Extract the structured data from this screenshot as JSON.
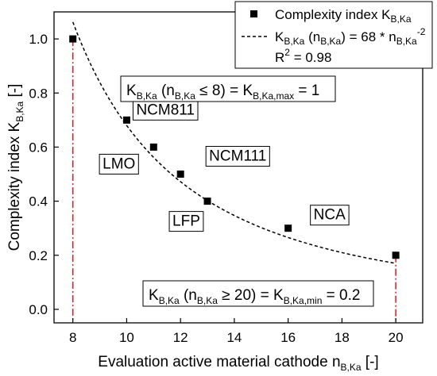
{
  "chart_data": {
    "type": "scatter",
    "xlim": [
      7.3,
      21.0
    ],
    "ylim": [
      -0.05,
      1.1
    ],
    "x_ticks": [
      8,
      10,
      12,
      14,
      16,
      18,
      20
    ],
    "y_ticks": [
      0.0,
      0.2,
      0.4,
      0.6,
      0.8,
      1.0
    ],
    "x_tick_labels": [
      "8",
      "10",
      "12",
      "14",
      "16",
      "18",
      "20"
    ],
    "y_tick_labels": [
      "0.0",
      "0.2",
      "0.4",
      "0.6",
      "0.8",
      "1.0"
    ],
    "xlabel": {
      "main": "Evaluation active material cathode n",
      "sub": "B,Ka",
      "unit": " [-]"
    },
    "ylabel": {
      "main": "Complexity index K",
      "sub": "B,Ka",
      "unit": " [-]"
    },
    "series": [
      {
        "name": "Complexity index K",
        "name_sub": "B,Ka",
        "marker": "square",
        "color": "#000000",
        "points": [
          {
            "x": 8,
            "y": 1.0
          },
          {
            "x": 10,
            "y": 0.7
          },
          {
            "x": 11,
            "y": 0.6
          },
          {
            "x": 12,
            "y": 0.5
          },
          {
            "x": 13,
            "y": 0.4
          },
          {
            "x": 16,
            "y": 0.3
          },
          {
            "x": 20,
            "y": 0.2
          }
        ]
      }
    ],
    "fit": {
      "type": "power",
      "coefficient": 68,
      "exponent": -2,
      "x_range": [
        8,
        20
      ],
      "style": "dashed",
      "color": "#000000",
      "legend_k": "K",
      "legend_k_sub": "B,Ka",
      "legend_mid": " (n",
      "legend_mid_sub": "B,Ka",
      "legend_eq": ") = 68 * n",
      "legend_n_sub": "B,Ka",
      "legend_exp": "-2",
      "r2_label": "R",
      "r2_sup": "2",
      "r2_value": " = 0.98"
    },
    "reference_lines": [
      {
        "x": 8,
        "y_top": 1.0,
        "color": "#e31a1c",
        "style": "dash-dot"
      },
      {
        "x": 20,
        "y_top": 0.2,
        "color": "#e31a1c",
        "style": "dash-dot"
      }
    ],
    "point_labels": [
      {
        "text": "NCM811",
        "x": 10,
        "y": 0.7
      },
      {
        "text": "LMO",
        "x": 11,
        "y": 0.6
      },
      {
        "text": "NCM111",
        "x": 12,
        "y": 0.5
      },
      {
        "text": "LFP",
        "x": 13,
        "y": 0.4
      },
      {
        "text": "NCA",
        "x": 16,
        "y": 0.3
      }
    ],
    "annotations": [
      {
        "id": "max",
        "parts": [
          {
            "t": "K"
          },
          {
            "t": "B,Ka",
            "sub": true
          },
          {
            "t": " (n"
          },
          {
            "t": "B,Ka",
            "sub": true
          },
          {
            "t": " ≤ 8) = K"
          },
          {
            "t": "B,Ka,max",
            "sub": true
          },
          {
            "t": " = 1"
          }
        ]
      },
      {
        "id": "min",
        "parts": [
          {
            "t": "K"
          },
          {
            "t": "B,Ka",
            "sub": true
          },
          {
            "t": " (n"
          },
          {
            "t": "B,Ka",
            "sub": true
          },
          {
            "t": " ≥ 20) = K"
          },
          {
            "t": "B,Ka,min",
            "sub": true
          },
          {
            "t": " = 0.2"
          }
        ]
      }
    ],
    "legend_position": "top-right",
    "grid": false
  }
}
